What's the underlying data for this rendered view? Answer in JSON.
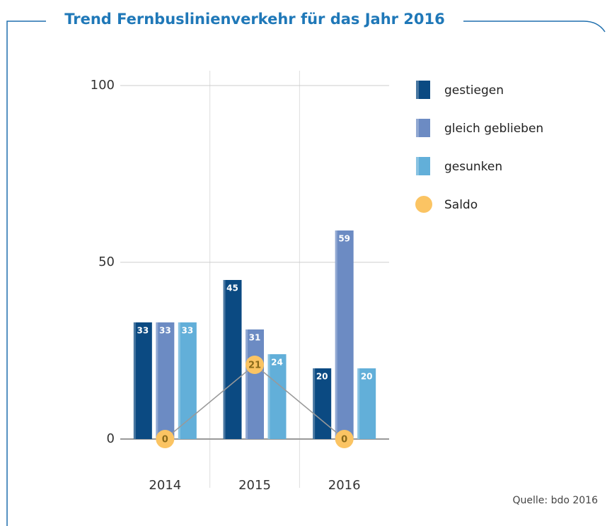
{
  "chart_data": {
    "type": "bar",
    "title": "Trend Fernbuslinienverkehr für das Jahr 2016",
    "categories": [
      "2014",
      "2015",
      "2016"
    ],
    "series": [
      {
        "name": "gestiegen",
        "color": "#0b4a82",
        "values": [
          33,
          45,
          20
        ]
      },
      {
        "name": "gleich geblieben",
        "color": "#6c8bc3",
        "values": [
          33,
          31,
          59
        ]
      },
      {
        "name": "gesunken",
        "color": "#62afd9",
        "values": [
          33,
          24,
          20
        ]
      },
      {
        "name": "Saldo",
        "type": "line",
        "color": "#fbc463",
        "values": [
          0,
          21,
          0
        ]
      }
    ],
    "ylim": [
      0,
      100
    ],
    "yticks": [
      0,
      50,
      100
    ],
    "grid": true,
    "legend": "right",
    "source": "Quelle: bdo 2016"
  }
}
